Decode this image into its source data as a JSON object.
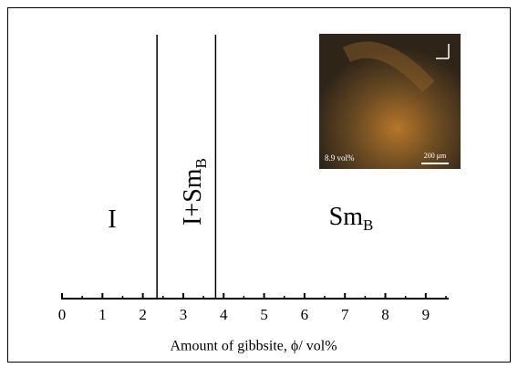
{
  "chart_data": {
    "type": "phase",
    "xlabel": "Amount of gibbsite, ϕ/ vol%",
    "xlim": [
      0,
      9.5
    ],
    "xticks": [
      0,
      1,
      2,
      3,
      4,
      5,
      6,
      7,
      8,
      9
    ],
    "minor_xticks": [
      0.5,
      1.5,
      2.5,
      3.5,
      4.5,
      5.5,
      6.5,
      7.5,
      8.5,
      9.5
    ],
    "boundaries": [
      2.35,
      3.8
    ],
    "regions": [
      {
        "text": "I"
      },
      {
        "text": "I+Sm",
        "sub": "B"
      },
      {
        "text": "Sm",
        "sub": "B"
      }
    ],
    "inset": {
      "label": "8.9 vol%",
      "scale_bar": "200 μm"
    }
  }
}
